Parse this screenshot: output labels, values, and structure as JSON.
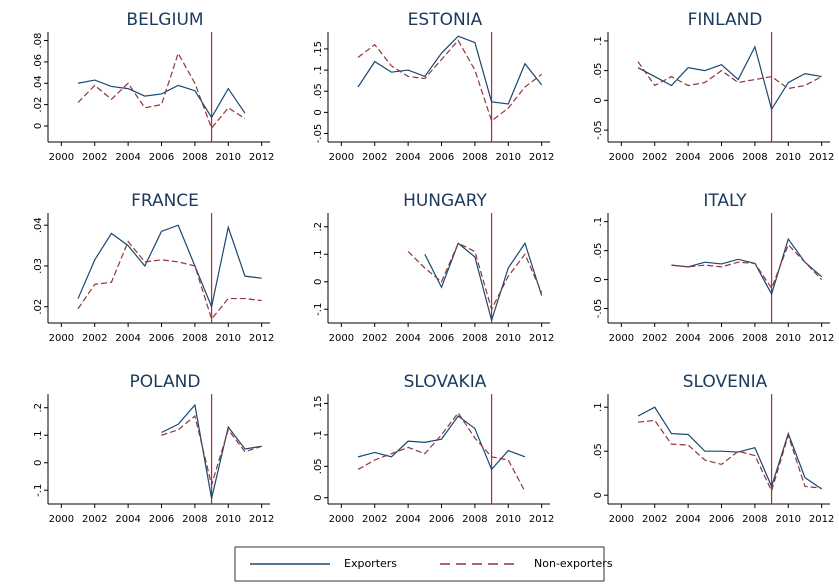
{
  "chart_data": [
    {
      "type": "line",
      "title": "BELGIUM",
      "x": [
        2001,
        2002,
        2003,
        2004,
        2005,
        2006,
        2007,
        2008,
        2009,
        2010,
        2011,
        2012
      ],
      "xlim": [
        1999.2,
        2012.5
      ],
      "xticks": [
        2000,
        2002,
        2004,
        2006,
        2008,
        2010,
        2012
      ],
      "ylim": [
        -0.015,
        0.088
      ],
      "yticks": [
        0,
        {
          "value": 0.02,
          "label": ".02"
        },
        {
          "value": 0.04,
          "label": ".04"
        },
        {
          "value": 0.06,
          "label": ".06"
        },
        {
          "value": 0.08,
          "label": ".08"
        }
      ],
      "vline": 2009,
      "vline_color": "#c41e3a",
      "series": [
        {
          "name": "Exporters",
          "color": "#1a476f",
          "style": "solid",
          "values": [
            0.04,
            0.043,
            0.037,
            0.035,
            0.028,
            0.03,
            0.038,
            0.033,
            0.008,
            0.035,
            0.012,
            null
          ]
        },
        {
          "name": "Non-exporters",
          "color": "#90353b",
          "style": "dashed",
          "values": [
            0.022,
            0.038,
            0.025,
            0.04,
            0.017,
            0.02,
            0.068,
            0.04,
            -0.002,
            0.017,
            0.007,
            null
          ]
        }
      ]
    },
    {
      "type": "line",
      "title": "ESTONIA",
      "x": [
        2001,
        2002,
        2003,
        2004,
        2005,
        2006,
        2007,
        2008,
        2009,
        2010,
        2011,
        2012
      ],
      "xlim": [
        1999.2,
        2012.5
      ],
      "xticks": [
        2000,
        2002,
        2004,
        2006,
        2008,
        2010,
        2012
      ],
      "ylim": [
        -0.07,
        0.19
      ],
      "yticks": [
        {
          "value": -0.05,
          "label": "-.05"
        },
        0,
        {
          "value": 0.05,
          "label": ".05"
        },
        {
          "value": 0.1,
          "label": ".1"
        },
        {
          "value": 0.15,
          "label": ".15"
        }
      ],
      "vline": 2009,
      "vline_color": "#c41e3a",
      "series": [
        {
          "name": "Exporters",
          "color": "#1a476f",
          "style": "solid",
          "values": [
            0.06,
            0.12,
            0.095,
            0.1,
            0.085,
            0.14,
            0.18,
            0.165,
            0.025,
            0.02,
            0.115,
            0.065
          ]
        },
        {
          "name": "Non-exporters",
          "color": "#90353b",
          "style": "dashed",
          "values": [
            0.13,
            0.16,
            0.11,
            0.085,
            0.08,
            0.125,
            0.17,
            0.1,
            -0.02,
            0.01,
            0.06,
            0.09
          ]
        }
      ]
    },
    {
      "type": "line",
      "title": "FINLAND",
      "x": [
        2001,
        2002,
        2003,
        2004,
        2005,
        2006,
        2007,
        2008,
        2009,
        2010,
        2011,
        2012
      ],
      "xlim": [
        1999.2,
        2012.5
      ],
      "xticks": [
        2000,
        2002,
        2004,
        2006,
        2008,
        2010,
        2012
      ],
      "ylim": [
        -0.07,
        0.115
      ],
      "yticks": [
        {
          "value": -0.05,
          "label": "-.05"
        },
        0,
        {
          "value": 0.05,
          "label": ".05"
        },
        {
          "value": 0.1,
          "label": ".1"
        }
      ],
      "vline": 2009,
      "vline_color": "#c41e3a",
      "series": [
        {
          "name": "Exporters",
          "color": "#1a476f",
          "style": "solid",
          "values": [
            0.055,
            0.04,
            0.025,
            0.055,
            0.05,
            0.06,
            0.035,
            0.09,
            -0.015,
            0.03,
            0.045,
            0.04
          ]
        },
        {
          "name": "Non-exporters",
          "color": "#90353b",
          "style": "dashed",
          "values": [
            0.065,
            0.025,
            0.04,
            0.025,
            0.03,
            0.05,
            0.03,
            0.035,
            0.04,
            0.02,
            0.025,
            0.04
          ]
        }
      ]
    },
    {
      "type": "line",
      "title": "FRANCE",
      "x": [
        2001,
        2002,
        2003,
        2004,
        2005,
        2006,
        2007,
        2008,
        2009,
        2010,
        2011,
        2012
      ],
      "xlim": [
        1999.2,
        2012.5
      ],
      "xticks": [
        2000,
        2002,
        2004,
        2006,
        2008,
        2010,
        2012
      ],
      "ylim": [
        0.016,
        0.043
      ],
      "yticks": [
        {
          "value": 0.02,
          "label": ".02"
        },
        {
          "value": 0.03,
          "label": ".03"
        },
        {
          "value": 0.04,
          "label": ".04"
        }
      ],
      "vline": 2009,
      "vline_color": "#c41e3a",
      "series": [
        {
          "name": "Exporters",
          "color": "#1a476f",
          "style": "solid",
          "values": [
            0.022,
            0.0315,
            0.038,
            0.035,
            0.03,
            0.0385,
            0.04,
            0.03,
            0.02,
            0.0395,
            0.0275,
            0.027
          ]
        },
        {
          "name": "Non-exporters",
          "color": "#90353b",
          "style": "dashed",
          "values": [
            0.0195,
            0.0255,
            0.026,
            0.036,
            0.031,
            0.0315,
            0.031,
            0.03,
            0.017,
            0.022,
            0.022,
            0.0215
          ]
        }
      ]
    },
    {
      "type": "line",
      "title": "HUNGARY",
      "x": [
        2001,
        2002,
        2003,
        2004,
        2005,
        2006,
        2007,
        2008,
        2009,
        2010,
        2011,
        2012
      ],
      "xlim": [
        1999.2,
        2012.5
      ],
      "xticks": [
        2000,
        2002,
        2004,
        2006,
        2008,
        2010,
        2012
      ],
      "ylim": [
        -0.15,
        0.25
      ],
      "yticks": [
        {
          "value": -0.1,
          "label": "-.1"
        },
        0,
        {
          "value": 0.1,
          "label": ".1"
        },
        {
          "value": 0.2,
          "label": ".2"
        }
      ],
      "vline": 2009,
      "vline_color": "#c41e3a",
      "series": [
        {
          "name": "Exporters",
          "color": "#1a476f",
          "style": "solid",
          "values": [
            null,
            null,
            null,
            null,
            0.1,
            -0.02,
            0.14,
            0.09,
            -0.14,
            0.05,
            0.14,
            -0.05
          ]
        },
        {
          "name": "Non-exporters",
          "color": "#90353b",
          "style": "dashed",
          "values": [
            null,
            null,
            null,
            0.11,
            0.05,
            0.0,
            0.14,
            0.11,
            -0.1,
            0.02,
            0.1,
            -0.04
          ]
        }
      ]
    },
    {
      "type": "line",
      "title": "ITALY",
      "x": [
        2001,
        2002,
        2003,
        2004,
        2005,
        2006,
        2007,
        2008,
        2009,
        2010,
        2011,
        2012
      ],
      "xlim": [
        1999.2,
        2012.5
      ],
      "xticks": [
        2000,
        2002,
        2004,
        2006,
        2008,
        2010,
        2012
      ],
      "ylim": [
        -0.075,
        0.115
      ],
      "yticks": [
        {
          "value": -0.05,
          "label": "-.05"
        },
        0,
        {
          "value": 0.05,
          "label": ".05"
        },
        {
          "value": 0.1,
          "label": ".1"
        }
      ],
      "vline": 2009,
      "vline_color": "#c41e3a",
      "series": [
        {
          "name": "Exporters",
          "color": "#1a476f",
          "style": "solid",
          "values": [
            null,
            null,
            0.025,
            0.022,
            0.03,
            0.027,
            0.035,
            0.028,
            -0.025,
            0.07,
            0.03,
            0.005
          ]
        },
        {
          "name": "Non-exporters",
          "color": "#90353b",
          "style": "dashed",
          "values": [
            null,
            null,
            0.025,
            0.022,
            0.025,
            0.022,
            0.03,
            0.028,
            -0.015,
            0.06,
            0.03,
            0.0
          ]
        }
      ]
    },
    {
      "type": "line",
      "title": "POLAND",
      "x": [
        2001,
        2002,
        2003,
        2004,
        2005,
        2006,
        2007,
        2008,
        2009,
        2010,
        2011,
        2012
      ],
      "xlim": [
        1999.2,
        2012.5
      ],
      "xticks": [
        2000,
        2002,
        2004,
        2006,
        2008,
        2010,
        2012
      ],
      "ylim": [
        -0.15,
        0.25
      ],
      "yticks": [
        {
          "value": -0.1,
          "label": "-.1"
        },
        0,
        {
          "value": 0.1,
          "label": ".1"
        },
        {
          "value": 0.2,
          "label": ".2"
        }
      ],
      "vline": 2009,
      "vline_color": "#c41e3a",
      "series": [
        {
          "name": "Exporters",
          "color": "#1a476f",
          "style": "solid",
          "values": [
            null,
            null,
            null,
            null,
            null,
            0.11,
            0.14,
            0.21,
            -0.13,
            0.13,
            0.05,
            0.06
          ]
        },
        {
          "name": "Non-exporters",
          "color": "#90353b",
          "style": "dashed",
          "values": [
            null,
            null,
            null,
            null,
            null,
            0.1,
            0.12,
            0.17,
            -0.08,
            0.12,
            0.04,
            0.06
          ]
        }
      ]
    },
    {
      "type": "line",
      "title": "SLOVAKIA",
      "x": [
        2001,
        2002,
        2003,
        2004,
        2005,
        2006,
        2007,
        2008,
        2009,
        2010,
        2011,
        2012
      ],
      "xlim": [
        1999.2,
        2012.5
      ],
      "xticks": [
        2000,
        2002,
        2004,
        2006,
        2008,
        2010,
        2012
      ],
      "ylim": [
        -0.01,
        0.165
      ],
      "yticks": [
        0,
        {
          "value": 0.05,
          "label": ".05"
        },
        {
          "value": 0.1,
          "label": ".1"
        },
        {
          "value": 0.15,
          "label": ".15"
        }
      ],
      "vline": 2009,
      "vline_color": "#c41e3a",
      "series": [
        {
          "name": "Exporters",
          "color": "#1a476f",
          "style": "solid",
          "values": [
            0.065,
            0.072,
            0.065,
            0.09,
            0.088,
            0.093,
            0.13,
            0.11,
            0.045,
            0.075,
            0.065,
            null
          ]
        },
        {
          "name": "Non-exporters",
          "color": "#90353b",
          "style": "dashed",
          "values": [
            0.045,
            0.06,
            0.07,
            0.08,
            0.07,
            0.1,
            0.135,
            0.095,
            0.065,
            0.06,
            0.01,
            null
          ]
        }
      ]
    },
    {
      "type": "line",
      "title": "SLOVENIA",
      "x": [
        2001,
        2002,
        2003,
        2004,
        2005,
        2006,
        2007,
        2008,
        2009,
        2010,
        2011,
        2012
      ],
      "xlim": [
        1999.2,
        2012.5
      ],
      "xticks": [
        2000,
        2002,
        2004,
        2006,
        2008,
        2010,
        2012
      ],
      "ylim": [
        -0.01,
        0.115
      ],
      "yticks": [
        0,
        {
          "value": 0.05,
          "label": ".05"
        },
        {
          "value": 0.1,
          "label": ".1"
        }
      ],
      "vline": 2009,
      "vline_color": "#c41e3a",
      "series": [
        {
          "name": "Exporters",
          "color": "#1a476f",
          "style": "solid",
          "values": [
            0.09,
            0.1,
            0.07,
            0.069,
            0.05,
            0.05,
            0.049,
            0.054,
            0.01,
            0.07,
            0.02,
            0.007
          ]
        },
        {
          "name": "Non-exporters",
          "color": "#90353b",
          "style": "dashed",
          "values": [
            0.083,
            0.085,
            0.058,
            0.057,
            0.04,
            0.035,
            0.05,
            0.045,
            0.005,
            0.068,
            0.01,
            0.008
          ]
        }
      ]
    }
  ]
}
